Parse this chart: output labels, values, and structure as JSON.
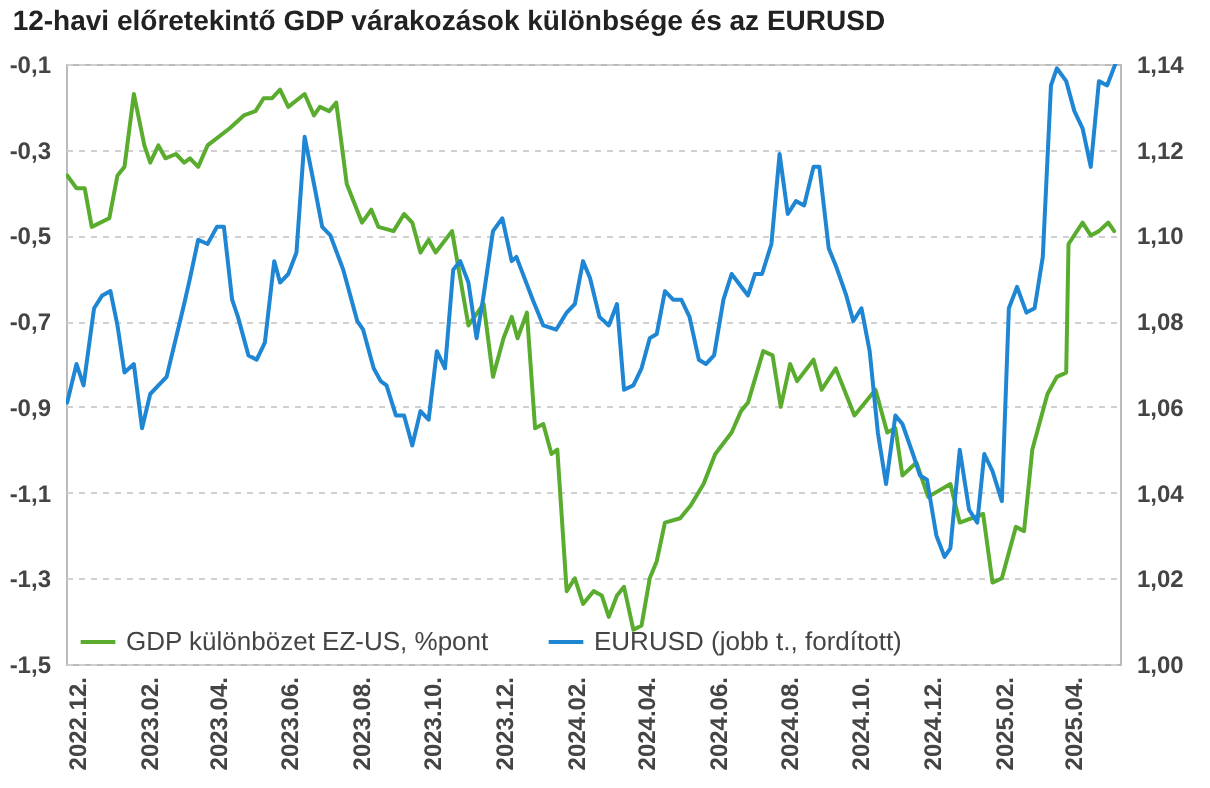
{
  "chart_data": {
    "type": "line",
    "title": "12-havi előretekintő GDP várakozások különbsége és az EURUSD",
    "xlim": [
      "2022-11-22",
      "2025-05-11"
    ],
    "xticks": [
      {
        "value": "2022-12-01",
        "label": "2022.12."
      },
      {
        "value": "2023-02-01",
        "label": "2023.02."
      },
      {
        "value": "2023-04-01",
        "label": "2023.04."
      },
      {
        "value": "2023-06-01",
        "label": "2023.06."
      },
      {
        "value": "2023-08-01",
        "label": "2023.08."
      },
      {
        "value": "2023-10-01",
        "label": "2023.10."
      },
      {
        "value": "2023-12-01",
        "label": "2023.12."
      },
      {
        "value": "2024-02-01",
        "label": "2024.02."
      },
      {
        "value": "2024-04-01",
        "label": "2024.04."
      },
      {
        "value": "2024-06-01",
        "label": "2024.06."
      },
      {
        "value": "2024-08-01",
        "label": "2024.08."
      },
      {
        "value": "2024-10-01",
        "label": "2024.10."
      },
      {
        "value": "2024-12-01",
        "label": "2024.12."
      },
      {
        "value": "2025-02-01",
        "label": "2025.02."
      },
      {
        "value": "2025-04-01",
        "label": "2025.04."
      }
    ],
    "ylim": [
      -1.5,
      -0.1
    ],
    "yticks": [
      {
        "value": -1.5,
        "label": "-1,5"
      },
      {
        "value": -1.3,
        "label": "-1,3"
      },
      {
        "value": -1.1,
        "label": "-1,1"
      },
      {
        "value": -0.9,
        "label": "-0,9"
      },
      {
        "value": -0.7,
        "label": "-0,7"
      },
      {
        "value": -0.5,
        "label": "-0,5"
      },
      {
        "value": -0.3,
        "label": "-0,3"
      },
      {
        "value": -0.1,
        "label": "-0,1"
      }
    ],
    "y2lim": [
      1.0,
      1.14
    ],
    "y2ticks": [
      {
        "value": 1.0,
        "label": "1,00"
      },
      {
        "value": 1.02,
        "label": "1,02"
      },
      {
        "value": 1.04,
        "label": "1,04"
      },
      {
        "value": 1.06,
        "label": "1,06"
      },
      {
        "value": 1.08,
        "label": "1,08"
      },
      {
        "value": 1.1,
        "label": "1,10"
      },
      {
        "value": 1.12,
        "label": "1,12"
      },
      {
        "value": 1.14,
        "label": "1,14"
      }
    ],
    "grid": "y",
    "legend": "bottom",
    "marker": "none",
    "line_style": "solid",
    "series": [
      {
        "name": "GDP különbözet EZ-US, %pont",
        "color": "#5aac2e",
        "x": [
          "2022-11-23",
          "2022-12-01",
          "2022-12-08",
          "2022-12-14",
          "2022-12-29",
          "2023-01-05",
          "2023-01-11",
          "2023-01-19",
          "2023-01-28",
          "2023-02-02",
          "2023-02-09",
          "2023-02-15",
          "2023-02-24",
          "2023-03-03",
          "2023-03-08",
          "2023-03-15",
          "2023-03-23",
          "2023-04-11",
          "2023-04-23",
          "2023-05-03",
          "2023-05-10",
          "2023-05-17",
          "2023-05-24",
          "2023-05-31",
          "2023-06-14",
          "2023-06-22",
          "2023-06-27",
          "2023-07-05",
          "2023-07-11",
          "2023-07-20",
          "2023-08-02",
          "2023-08-10",
          "2023-08-16",
          "2023-08-29",
          "2023-09-07",
          "2023-09-14",
          "2023-09-21",
          "2023-09-28",
          "2023-10-04",
          "2023-10-18",
          "2023-11-01",
          "2023-11-14",
          "2023-11-22",
          "2023-12-01",
          "2023-12-08",
          "2023-12-13",
          "2023-12-21",
          "2023-12-28",
          "2024-01-04",
          "2024-01-11",
          "2024-01-16",
          "2024-01-24",
          "2024-01-31",
          "2024-02-07",
          "2024-02-16",
          "2024-02-23",
          "2024-02-29",
          "2024-03-07",
          "2024-03-13",
          "2024-03-21",
          "2024-03-28",
          "2024-04-04",
          "2024-04-10",
          "2024-04-17",
          "2024-04-30",
          "2024-05-09",
          "2024-05-20",
          "2024-05-30",
          "2024-06-13",
          "2024-06-21",
          "2024-06-27",
          "2024-07-10",
          "2024-07-18",
          "2024-07-25",
          "2024-08-02",
          "2024-08-08",
          "2024-08-22",
          "2024-08-29",
          "2024-09-10",
          "2024-09-26",
          "2024-10-14",
          "2024-10-24",
          "2024-10-31",
          "2024-11-06",
          "2024-11-18",
          "2024-11-28",
          "2024-12-17",
          "2024-12-25",
          "2025-01-14",
          "2025-01-22",
          "2025-01-30",
          "2025-02-11",
          "2025-02-18",
          "2025-02-25",
          "2025-03-10",
          "2025-03-18",
          "2025-03-26",
          "2025-03-28",
          "2025-04-09",
          "2025-04-16",
          "2025-04-23",
          "2025-05-01",
          "2025-05-06"
        ],
        "values": [
          -0.36,
          -0.39,
          -0.39,
          -0.48,
          -0.46,
          -0.36,
          -0.34,
          -0.17,
          -0.29,
          -0.33,
          -0.29,
          -0.32,
          -0.31,
          -0.33,
          -0.32,
          -0.34,
          -0.29,
          -0.25,
          -0.22,
          -0.21,
          -0.18,
          -0.18,
          -0.16,
          -0.2,
          -0.17,
          -0.22,
          -0.2,
          -0.21,
          -0.19,
          -0.38,
          -0.47,
          -0.44,
          -0.48,
          -0.49,
          -0.45,
          -0.47,
          -0.54,
          -0.51,
          -0.54,
          -0.49,
          -0.71,
          -0.66,
          -0.83,
          -0.74,
          -0.69,
          -0.74,
          -0.68,
          -0.95,
          -0.94,
          -1.01,
          -1.0,
          -1.33,
          -1.3,
          -1.36,
          -1.33,
          -1.34,
          -1.39,
          -1.34,
          -1.32,
          -1.42,
          -1.41,
          -1.3,
          -1.26,
          -1.17,
          -1.16,
          -1.13,
          -1.08,
          -1.01,
          -0.96,
          -0.91,
          -0.89,
          -0.77,
          -0.78,
          -0.9,
          -0.8,
          -0.84,
          -0.79,
          -0.86,
          -0.81,
          -0.92,
          -0.86,
          -0.96,
          -0.95,
          -1.06,
          -1.03,
          -1.11,
          -1.08,
          -1.17,
          -1.15,
          -1.31,
          -1.3,
          -1.18,
          -1.19,
          -1.0,
          -0.87,
          -0.83,
          -0.82,
          -0.52,
          -0.47,
          -0.5,
          -0.49,
          -0.47,
          -0.49
        ]
      },
      {
        "name": "EURUSD (jobb t., fordított)",
        "color": "#1f86d4",
        "axis": "y2",
        "x": [
          "2022-11-23",
          "2022-12-01",
          "2022-12-07",
          "2022-12-16",
          "2022-12-23",
          "2022-12-30",
          "2023-01-05",
          "2023-01-11",
          "2023-01-19",
          "2023-01-26",
          "2023-02-02",
          "2023-02-09",
          "2023-02-16",
          "2023-03-03",
          "2023-03-08",
          "2023-03-15",
          "2023-03-23",
          "2023-03-31",
          "2023-04-06",
          "2023-04-13",
          "2023-04-18",
          "2023-04-27",
          "2023-05-04",
          "2023-05-11",
          "2023-05-19",
          "2023-05-24",
          "2023-05-31",
          "2023-06-07",
          "2023-06-14",
          "2023-06-22",
          "2023-06-29",
          "2023-07-06",
          "2023-07-17",
          "2023-07-29",
          "2023-08-03",
          "2023-08-12",
          "2023-08-18",
          "2023-08-23",
          "2023-08-31",
          "2023-09-07",
          "2023-09-14",
          "2023-09-21",
          "2023-09-28",
          "2023-10-05",
          "2023-10-12",
          "2023-10-19",
          "2023-10-25",
          "2023-11-01",
          "2023-11-08",
          "2023-11-14",
          "2023-11-22",
          "2023-11-30",
          "2023-12-08",
          "2023-12-12",
          "2023-12-26",
          "2024-01-04",
          "2024-01-15",
          "2024-01-24",
          "2024-01-31",
          "2024-02-07",
          "2024-02-13",
          "2024-02-21",
          "2024-02-29",
          "2024-03-07",
          "2024-03-13",
          "2024-03-21",
          "2024-03-28",
          "2024-04-04",
          "2024-04-10",
          "2024-04-17",
          "2024-04-24",
          "2024-05-01",
          "2024-05-08",
          "2024-05-16",
          "2024-05-22",
          "2024-05-29",
          "2024-06-06",
          "2024-06-13",
          "2024-06-27",
          "2024-07-03",
          "2024-07-09",
          "2024-07-17",
          "2024-07-24",
          "2024-07-31",
          "2024-08-07",
          "2024-08-14",
          "2024-08-22",
          "2024-08-27",
          "2024-09-04",
          "2024-09-10",
          "2024-09-19",
          "2024-09-25",
          "2024-10-02",
          "2024-10-09",
          "2024-10-16",
          "2024-10-23",
          "2024-10-31",
          "2024-11-06",
          "2024-11-15",
          "2024-11-21",
          "2024-11-27",
          "2024-12-05",
          "2024-12-12",
          "2024-12-17",
          "2024-12-25",
          "2025-01-02",
          "2025-01-09",
          "2025-01-15",
          "2025-01-22",
          "2025-01-30",
          "2025-02-05",
          "2025-02-12",
          "2025-02-20",
          "2025-02-27",
          "2025-03-06",
          "2025-03-13",
          "2025-03-18",
          "2025-03-26",
          "2025-04-02",
          "2025-04-09",
          "2025-04-16",
          "2025-04-23",
          "2025-04-30",
          "2025-05-07"
        ],
        "values": [
          1.061,
          1.07,
          1.065,
          1.083,
          1.086,
          1.087,
          1.079,
          1.068,
          1.07,
          1.055,
          1.063,
          1.065,
          1.067,
          1.084,
          1.09,
          1.099,
          1.098,
          1.102,
          1.102,
          1.085,
          1.081,
          1.072,
          1.071,
          1.075,
          1.094,
          1.089,
          1.091,
          1.096,
          1.123,
          1.112,
          1.102,
          1.1,
          1.092,
          1.08,
          1.078,
          1.069,
          1.066,
          1.065,
          1.058,
          1.058,
          1.051,
          1.059,
          1.057,
          1.073,
          1.069,
          1.092,
          1.094,
          1.089,
          1.076,
          1.086,
          1.101,
          1.104,
          1.094,
          1.095,
          1.085,
          1.079,
          1.078,
          1.082,
          1.084,
          1.094,
          1.09,
          1.081,
          1.079,
          1.084,
          1.064,
          1.065,
          1.069,
          1.076,
          1.077,
          1.087,
          1.085,
          1.085,
          1.081,
          1.071,
          1.07,
          1.072,
          1.085,
          1.091,
          1.086,
          1.091,
          1.091,
          1.098,
          1.119,
          1.105,
          1.108,
          1.107,
          1.116,
          1.116,
          1.097,
          1.093,
          1.086,
          1.08,
          1.083,
          1.073,
          1.054,
          1.042,
          1.058,
          1.056,
          1.049,
          1.044,
          1.043,
          1.03,
          1.025,
          1.027,
          1.05,
          1.036,
          1.033,
          1.049,
          1.045,
          1.038,
          1.083,
          1.088,
          1.082,
          1.083,
          1.095,
          1.135,
          1.139,
          1.136,
          1.129,
          1.125,
          1.116,
          1.136,
          1.135,
          1.14
        ]
      }
    ]
  }
}
